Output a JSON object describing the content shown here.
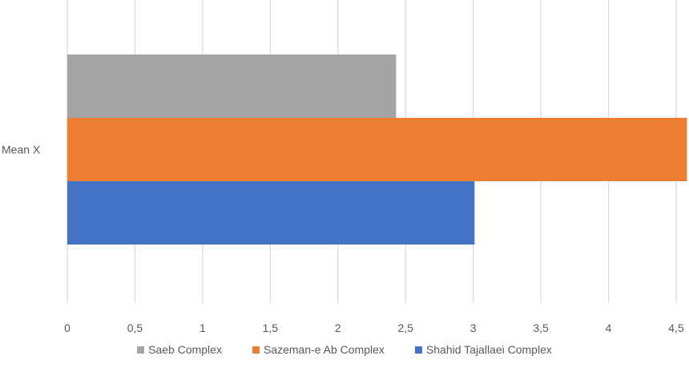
{
  "chart_data": {
    "type": "bar",
    "orientation": "horizontal",
    "categories": [
      "Mean X"
    ],
    "series": [
      {
        "name": "Saeb Complex",
        "values": [
          2.43
        ],
        "color": "#a5a5a5"
      },
      {
        "name": "Sazeman-e Ab Complex",
        "values": [
          4.58
        ],
        "color": "#ed7d31"
      },
      {
        "name": "Shahid Tajallaei Complex",
        "values": [
          3.01
        ],
        "color": "#4472c4"
      }
    ],
    "xlim": [
      0,
      4.5
    ],
    "xticks": [
      0,
      0.5,
      1,
      1.5,
      2,
      2.5,
      3,
      3.5,
      4,
      4.5
    ],
    "xtick_labels": [
      "0",
      "0,5",
      "1",
      "1,5",
      "2",
      "2,5",
      "3",
      "3,5",
      "4",
      "4,5"
    ],
    "grid": true,
    "legend_position": "bottom",
    "title": "",
    "xlabel": "",
    "ylabel": ""
  }
}
